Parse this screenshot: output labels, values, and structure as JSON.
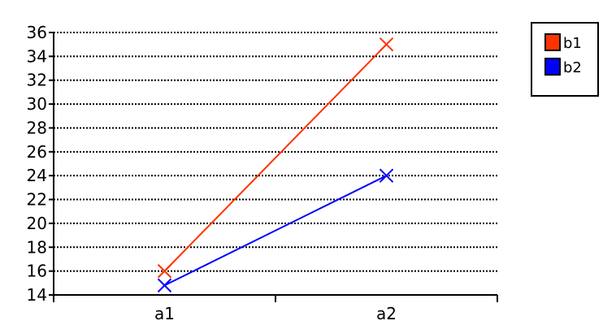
{
  "chart_data": {
    "type": "line",
    "categories": [
      "a1",
      "a2"
    ],
    "series": [
      {
        "name": "b1",
        "values": [
          16,
          35
        ],
        "color": "#ff3300"
      },
      {
        "name": "b2",
        "values": [
          14.8,
          24
        ],
        "color": "#0000ff"
      }
    ],
    "ylim": [
      14,
      36
    ],
    "y_ticks": [
      "14",
      "16",
      "18",
      "20",
      "22",
      "24",
      "26",
      "28",
      "30",
      "32",
      "34",
      "36"
    ],
    "grid": true,
    "grid_style": "dotted",
    "marker": "x",
    "legend_position": "top-right"
  }
}
